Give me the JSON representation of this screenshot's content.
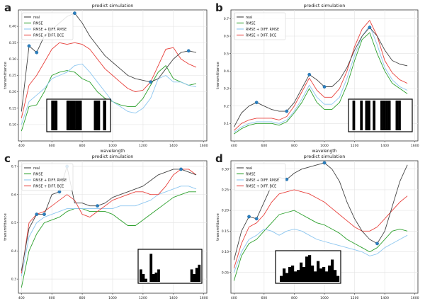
{
  "chart_data": [
    {
      "panel_label": "a",
      "type": "line",
      "title": "predict simulation",
      "xlabel": "wavelength",
      "ylabel": "transmittance",
      "xlim": [
        380,
        1620
      ],
      "ylim": [
        0.05,
        0.45
      ],
      "xticks": [
        400,
        600,
        800,
        1000,
        1200,
        1400,
        1600
      ],
      "yticks": [
        0.1,
        0.15,
        0.2,
        0.25,
        0.3,
        0.35,
        0.4
      ],
      "ytick_decimals": 2,
      "grid": true,
      "legend_position": "top-left",
      "legend": [
        "real",
        "RMSE",
        "RMSE + DIFF. RMSE",
        "RMSE + DIFF. BCE"
      ],
      "x": [
        400,
        450,
        500,
        550,
        600,
        650,
        700,
        750,
        800,
        850,
        900,
        950,
        1000,
        1050,
        1100,
        1150,
        1200,
        1250,
        1300,
        1350,
        1400,
        1450,
        1500,
        1550
      ],
      "series": [
        {
          "name": "real",
          "color": "#444444",
          "values": [
            0.14,
            0.34,
            0.32,
            0.37,
            0.39,
            0.41,
            0.43,
            0.44,
            0.41,
            0.37,
            0.34,
            0.31,
            0.29,
            0.27,
            0.25,
            0.24,
            0.235,
            0.23,
            0.24,
            0.27,
            0.3,
            0.32,
            0.325,
            0.32
          ]
        },
        {
          "name": "RMSE",
          "color": "#2ca02c",
          "values": [
            0.08,
            0.155,
            0.16,
            0.2,
            0.25,
            0.26,
            0.265,
            0.26,
            0.24,
            0.23,
            0.2,
            0.18,
            0.17,
            0.16,
            0.155,
            0.155,
            0.18,
            0.22,
            0.26,
            0.28,
            0.24,
            0.23,
            0.22,
            0.225
          ]
        },
        {
          "name": "RMSE + DIFF. RMSE",
          "color": "#8ec7f0",
          "values": [
            0.1,
            0.17,
            0.19,
            0.21,
            0.24,
            0.25,
            0.26,
            0.28,
            0.285,
            0.26,
            0.23,
            0.2,
            0.17,
            0.155,
            0.14,
            0.135,
            0.15,
            0.18,
            0.24,
            0.25,
            0.23,
            0.23,
            0.22,
            0.215
          ]
        },
        {
          "name": "RMSE + DIFF. BCE",
          "color": "#e8413c",
          "values": [
            0.12,
            0.22,
            0.25,
            0.29,
            0.33,
            0.35,
            0.345,
            0.35,
            0.345,
            0.33,
            0.3,
            0.27,
            0.25,
            0.23,
            0.21,
            0.2,
            0.205,
            0.23,
            0.28,
            0.33,
            0.335,
            0.3,
            0.285,
            0.275
          ]
        }
      ],
      "highlight_points": [
        [
          450,
          0.34
        ],
        [
          500,
          0.32
        ],
        [
          750,
          0.44
        ],
        [
          1250,
          0.23
        ],
        [
          1500,
          0.325
        ]
      ],
      "barcode": [
        0,
        1,
        1,
        0,
        0,
        0,
        1,
        1,
        1,
        1,
        1,
        0,
        0,
        0,
        0,
        1,
        1,
        0,
        1,
        0
      ]
    },
    {
      "panel_label": "b",
      "type": "line",
      "title": "predict simulation",
      "xlabel": "wavelength",
      "ylabel": "transmittance",
      "xlim": [
        380,
        1620
      ],
      "ylim": [
        0.0,
        0.75
      ],
      "xticks": [
        400,
        600,
        800,
        1000,
        1200,
        1400,
        1600
      ],
      "yticks": [
        0.1,
        0.2,
        0.3,
        0.4,
        0.5,
        0.6,
        0.7
      ],
      "ytick_decimals": 1,
      "grid": true,
      "legend_position": "top-left",
      "legend": [
        "real",
        "RMSE",
        "RMSE + DIFF. RMSE",
        "RMSE + DIFF. BCE"
      ],
      "x": [
        400,
        450,
        500,
        550,
        600,
        650,
        700,
        750,
        800,
        850,
        900,
        950,
        1000,
        1050,
        1100,
        1150,
        1200,
        1250,
        1300,
        1350,
        1400,
        1450,
        1500,
        1550
      ],
      "series": [
        {
          "name": "real",
          "color": "#444444",
          "values": [
            0.08,
            0.16,
            0.2,
            0.22,
            0.2,
            0.18,
            0.17,
            0.17,
            0.22,
            0.3,
            0.38,
            0.35,
            0.31,
            0.31,
            0.35,
            0.42,
            0.52,
            0.6,
            0.65,
            0.6,
            0.52,
            0.46,
            0.44,
            0.43
          ]
        },
        {
          "name": "RMSE",
          "color": "#2ca02c",
          "values": [
            0.04,
            0.07,
            0.09,
            0.1,
            0.1,
            0.1,
            0.09,
            0.11,
            0.16,
            0.22,
            0.3,
            0.22,
            0.18,
            0.18,
            0.22,
            0.32,
            0.46,
            0.58,
            0.62,
            0.5,
            0.4,
            0.33,
            0.3,
            0.27
          ]
        },
        {
          "name": "RMSE + DIFF. RMSE",
          "color": "#8ec7f0",
          "values": [
            0.05,
            0.08,
            0.1,
            0.11,
            0.11,
            0.11,
            0.1,
            0.12,
            0.17,
            0.24,
            0.32,
            0.25,
            0.21,
            0.21,
            0.25,
            0.36,
            0.49,
            0.6,
            0.66,
            0.55,
            0.42,
            0.35,
            0.31,
            0.29
          ]
        },
        {
          "name": "RMSE + DIFF. BCE",
          "color": "#e8413c",
          "values": [
            0.06,
            0.1,
            0.12,
            0.13,
            0.13,
            0.13,
            0.12,
            0.14,
            0.2,
            0.28,
            0.36,
            0.29,
            0.25,
            0.25,
            0.3,
            0.4,
            0.54,
            0.64,
            0.69,
            0.6,
            0.46,
            0.39,
            0.35,
            0.33
          ]
        }
      ],
      "highlight_points": [
        [
          550,
          0.22
        ],
        [
          750,
          0.17
        ],
        [
          900,
          0.38
        ],
        [
          1000,
          0.31
        ],
        [
          1300,
          0.65
        ]
      ],
      "barcode": [
        0,
        1,
        0,
        0,
        1,
        0,
        1,
        1,
        0,
        1,
        0,
        0,
        1,
        1,
        1,
        1,
        0,
        0,
        1,
        1,
        0,
        0,
        0,
        0
      ]
    },
    {
      "panel_label": "c",
      "type": "line",
      "title": "predict simulation",
      "xlabel": "wavelength",
      "ylabel": "transmittance",
      "xlim": [
        380,
        1620
      ],
      "ylim": [
        0.25,
        0.72
      ],
      "xticks": [
        400,
        600,
        800,
        1000,
        1200,
        1400,
        1600
      ],
      "yticks": [
        0.3,
        0.4,
        0.5,
        0.6,
        0.7
      ],
      "ytick_decimals": 1,
      "grid": true,
      "legend_position": "top-left",
      "legend": [
        "real",
        "RMSE",
        "RMSE + DIFF. RMSE",
        "RMSE + DIFF. BCE"
      ],
      "x": [
        400,
        450,
        500,
        550,
        600,
        650,
        700,
        750,
        800,
        850,
        900,
        950,
        1000,
        1050,
        1100,
        1150,
        1200,
        1250,
        1300,
        1350,
        1400,
        1450,
        1500,
        1550
      ],
      "series": [
        {
          "name": "real",
          "color": "#444444",
          "values": [
            0.33,
            0.48,
            0.53,
            0.53,
            0.6,
            0.61,
            0.7,
            0.57,
            0.57,
            0.56,
            0.56,
            0.57,
            0.59,
            0.6,
            0.61,
            0.62,
            0.63,
            0.65,
            0.67,
            0.68,
            0.69,
            0.69,
            0.68,
            0.67
          ]
        },
        {
          "name": "RMSE",
          "color": "#2ca02c",
          "values": [
            0.27,
            0.4,
            0.46,
            0.5,
            0.51,
            0.52,
            0.54,
            0.55,
            0.55,
            0.54,
            0.54,
            0.54,
            0.53,
            0.51,
            0.49,
            0.49,
            0.51,
            0.53,
            0.55,
            0.57,
            0.59,
            0.6,
            0.61,
            0.61
          ]
        },
        {
          "name": "RMSE + DIFF. RMSE",
          "color": "#8ec7f0",
          "values": [
            0.31,
            0.45,
            0.5,
            0.52,
            0.53,
            0.54,
            0.55,
            0.55,
            0.55,
            0.55,
            0.55,
            0.55,
            0.55,
            0.56,
            0.56,
            0.56,
            0.57,
            0.58,
            0.6,
            0.61,
            0.62,
            0.63,
            0.63,
            0.62
          ]
        },
        {
          "name": "RMSE + DIFF. BCE",
          "color": "#e8413c",
          "values": [
            0.32,
            0.5,
            0.53,
            0.54,
            0.56,
            0.58,
            0.6,
            0.58,
            0.53,
            0.52,
            0.54,
            0.56,
            0.58,
            0.59,
            0.6,
            0.61,
            0.61,
            0.6,
            0.6,
            0.63,
            0.67,
            0.69,
            0.69,
            0.67
          ]
        }
      ],
      "highlight_points": [
        [
          500,
          0.53
        ],
        [
          550,
          0.53
        ],
        [
          650,
          0.61
        ],
        [
          700,
          0.7
        ],
        [
          900,
          0.56
        ],
        [
          1450,
          0.69
        ]
      ],
      "histogram": [
        0.4,
        0.25,
        0.1,
        0.0,
        0.9,
        0.25,
        0.3,
        0.4,
        0.0,
        0.0,
        0.0,
        0.0,
        0.0,
        0.0,
        0.0,
        0.0,
        0.0,
        0.0,
        0.0,
        0.0,
        0.4,
        0.25,
        0.45,
        0.55
      ]
    },
    {
      "panel_label": "d",
      "type": "line",
      "title": "predict simulation",
      "xlabel": "wavelength",
      "ylabel": "transmittance",
      "xlim": [
        380,
        1620
      ],
      "ylim": [
        0.0,
        0.32
      ],
      "xticks": [
        400,
        600,
        800,
        1000,
        1200,
        1400,
        1600
      ],
      "yticks": [
        0.05,
        0.1,
        0.15,
        0.2,
        0.25,
        0.3
      ],
      "ytick_decimals": 2,
      "grid": true,
      "legend_position": "top-left",
      "legend": [
        "real",
        "RMSE",
        "RMSE + DIFF. RMSE",
        "RMSE + DIFF. BCE"
      ],
      "x": [
        400,
        450,
        500,
        550,
        600,
        650,
        700,
        750,
        800,
        850,
        900,
        950,
        1000,
        1050,
        1100,
        1150,
        1200,
        1250,
        1300,
        1350,
        1400,
        1450,
        1500,
        1550
      ],
      "series": [
        {
          "name": "real",
          "color": "#444444",
          "values": [
            0.08,
            0.15,
            0.185,
            0.18,
            0.22,
            0.26,
            0.28,
            0.275,
            0.29,
            0.3,
            0.305,
            0.31,
            0.315,
            0.3,
            0.27,
            0.22,
            0.18,
            0.15,
            0.13,
            0.12,
            0.15,
            0.21,
            0.27,
            0.31
          ]
        },
        {
          "name": "RMSE",
          "color": "#2ca02c",
          "values": [
            0.03,
            0.09,
            0.12,
            0.13,
            0.15,
            0.17,
            0.19,
            0.195,
            0.2,
            0.19,
            0.18,
            0.17,
            0.165,
            0.155,
            0.145,
            0.13,
            0.12,
            0.11,
            0.1,
            0.11,
            0.13,
            0.15,
            0.155,
            0.15
          ]
        },
        {
          "name": "RMSE + DIFF. RMSE",
          "color": "#8ec7f0",
          "values": [
            0.05,
            0.1,
            0.13,
            0.14,
            0.155,
            0.15,
            0.14,
            0.15,
            0.155,
            0.15,
            0.14,
            0.13,
            0.125,
            0.12,
            0.115,
            0.11,
            0.105,
            0.1,
            0.09,
            0.095,
            0.11,
            0.12,
            0.13,
            0.14
          ]
        },
        {
          "name": "RMSE + DIFF. BCE",
          "color": "#e8413c",
          "values": [
            0.06,
            0.12,
            0.16,
            0.17,
            0.19,
            0.22,
            0.24,
            0.245,
            0.25,
            0.245,
            0.24,
            0.23,
            0.22,
            0.205,
            0.19,
            0.175,
            0.16,
            0.15,
            0.15,
            0.16,
            0.18,
            0.2,
            0.22,
            0.235
          ]
        }
      ],
      "highlight_points": [
        [
          500,
          0.185
        ],
        [
          550,
          0.18
        ],
        [
          750,
          0.275
        ],
        [
          1000,
          0.315
        ],
        [
          1350,
          0.12
        ]
      ],
      "histogram": [
        0.0,
        0.2,
        0.45,
        0.3,
        0.5,
        0.55,
        0.35,
        0.4,
        0.65,
        0.5,
        0.85,
        0.9,
        0.55,
        0.35,
        0.7,
        0.45,
        0.5,
        0.35,
        0.55,
        0.75,
        0.4,
        0.2
      ]
    }
  ]
}
